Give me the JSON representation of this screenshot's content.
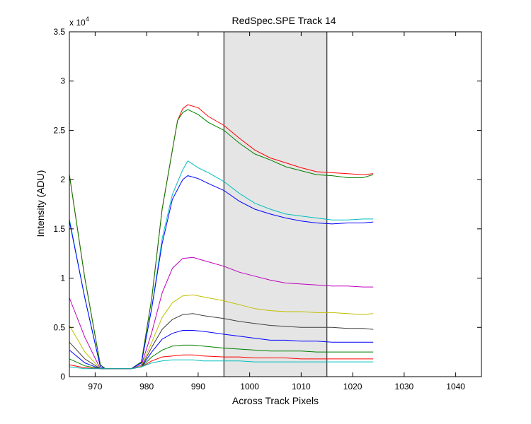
{
  "chart_data": {
    "type": "line",
    "title": "RedSpec.SPE   Track 14",
    "xlabel": "Across Track Pixels",
    "ylabel": "Intensity (ADU)",
    "y_multiplier_base": "x 10",
    "y_multiplier_exp": "4",
    "xlim": [
      965,
      1045
    ],
    "ylim": [
      0,
      3.5
    ],
    "x_ticks": [
      970,
      980,
      990,
      1000,
      1010,
      1020,
      1030,
      1040
    ],
    "x_tick_labels": [
      "970",
      "980",
      "990",
      "1000",
      "1010",
      "1020",
      "1030",
      "1040"
    ],
    "y_ticks": [
      0,
      0.5,
      1,
      1.5,
      2,
      2.5,
      3,
      3.5
    ],
    "y_tick_labels": [
      "0",
      "0.5",
      "1",
      "1.5",
      "2",
      "2.5",
      "3",
      "3.5"
    ],
    "grid": false,
    "shaded_region": {
      "x_start": 995,
      "x_end": 1015,
      "color": "#e5e5e5"
    },
    "x_end": 1024,
    "series": [
      {
        "color": "#ff0000",
        "points": [
          [
            965,
            2.05
          ],
          [
            968,
            1.0
          ],
          [
            971,
            0.12
          ],
          [
            972,
            0.08
          ],
          [
            977,
            0.08
          ],
          [
            979,
            0.15
          ],
          [
            981,
            0.8
          ],
          [
            983,
            1.7
          ],
          [
            985,
            2.3
          ],
          [
            986,
            2.6
          ],
          [
            987,
            2.72
          ],
          [
            988,
            2.76
          ],
          [
            990,
            2.73
          ],
          [
            992,
            2.64
          ],
          [
            995,
            2.55
          ],
          [
            998,
            2.42
          ],
          [
            1001,
            2.3
          ],
          [
            1004,
            2.22
          ],
          [
            1007,
            2.17
          ],
          [
            1010,
            2.12
          ],
          [
            1013,
            2.08
          ],
          [
            1016,
            2.07
          ],
          [
            1019,
            2.06
          ],
          [
            1022,
            2.05
          ],
          [
            1024,
            2.06
          ]
        ]
      },
      {
        "color": "#008000",
        "points": [
          [
            965,
            2.05
          ],
          [
            968,
            1.0
          ],
          [
            971,
            0.12
          ],
          [
            972,
            0.08
          ],
          [
            977,
            0.08
          ],
          [
            979,
            0.15
          ],
          [
            981,
            0.8
          ],
          [
            983,
            1.7
          ],
          [
            985,
            2.3
          ],
          [
            986,
            2.6
          ],
          [
            987,
            2.68
          ],
          [
            988,
            2.71
          ],
          [
            990,
            2.66
          ],
          [
            992,
            2.58
          ],
          [
            995,
            2.5
          ],
          [
            998,
            2.37
          ],
          [
            1001,
            2.26
          ],
          [
            1004,
            2.2
          ],
          [
            1007,
            2.13
          ],
          [
            1010,
            2.09
          ],
          [
            1013,
            2.05
          ],
          [
            1016,
            2.04
          ],
          [
            1019,
            2.02
          ],
          [
            1022,
            2.02
          ],
          [
            1024,
            2.05
          ]
        ]
      },
      {
        "color": "#00bfbf",
        "points": [
          [
            965,
            1.6
          ],
          [
            968,
            0.8
          ],
          [
            971,
            0.1
          ],
          [
            972,
            0.08
          ],
          [
            977,
            0.08
          ],
          [
            979,
            0.14
          ],
          [
            981,
            0.7
          ],
          [
            983,
            1.4
          ],
          [
            985,
            1.85
          ],
          [
            987,
            2.1
          ],
          [
            988,
            2.19
          ],
          [
            990,
            2.12
          ],
          [
            992,
            2.07
          ],
          [
            995,
            1.98
          ],
          [
            998,
            1.86
          ],
          [
            1001,
            1.76
          ],
          [
            1004,
            1.7
          ],
          [
            1007,
            1.65
          ],
          [
            1010,
            1.63
          ],
          [
            1013,
            1.61
          ],
          [
            1016,
            1.59
          ],
          [
            1019,
            1.59
          ],
          [
            1022,
            1.6
          ],
          [
            1024,
            1.6
          ]
        ]
      },
      {
        "color": "#0000ff",
        "points": [
          [
            965,
            1.58
          ],
          [
            968,
            0.8
          ],
          [
            971,
            0.1
          ],
          [
            972,
            0.08
          ],
          [
            977,
            0.08
          ],
          [
            979,
            0.14
          ],
          [
            981,
            0.7
          ],
          [
            983,
            1.35
          ],
          [
            985,
            1.8
          ],
          [
            987,
            2.0
          ],
          [
            988,
            2.04
          ],
          [
            990,
            2.01
          ],
          [
            992,
            1.96
          ],
          [
            995,
            1.89
          ],
          [
            998,
            1.78
          ],
          [
            1001,
            1.7
          ],
          [
            1004,
            1.65
          ],
          [
            1007,
            1.61
          ],
          [
            1010,
            1.58
          ],
          [
            1013,
            1.56
          ],
          [
            1016,
            1.55
          ],
          [
            1019,
            1.56
          ],
          [
            1022,
            1.56
          ],
          [
            1024,
            1.57
          ]
        ]
      },
      {
        "color": "#bf00bf",
        "points": [
          [
            965,
            0.8
          ],
          [
            968,
            0.4
          ],
          [
            971,
            0.08
          ],
          [
            972,
            0.08
          ],
          [
            977,
            0.08
          ],
          [
            979,
            0.12
          ],
          [
            981,
            0.45
          ],
          [
            983,
            0.85
          ],
          [
            985,
            1.1
          ],
          [
            987,
            1.2
          ],
          [
            989,
            1.21
          ],
          [
            991,
            1.18
          ],
          [
            995,
            1.12
          ],
          [
            998,
            1.06
          ],
          [
            1001,
            1.02
          ],
          [
            1004,
            0.98
          ],
          [
            1007,
            0.95
          ],
          [
            1010,
            0.94
          ],
          [
            1013,
            0.93
          ],
          [
            1016,
            0.92
          ],
          [
            1019,
            0.92
          ],
          [
            1022,
            0.91
          ],
          [
            1024,
            0.91
          ]
        ]
      },
      {
        "color": "#bfbf00",
        "points": [
          [
            965,
            0.52
          ],
          [
            968,
            0.25
          ],
          [
            971,
            0.08
          ],
          [
            977,
            0.08
          ],
          [
            979,
            0.11
          ],
          [
            981,
            0.35
          ],
          [
            983,
            0.6
          ],
          [
            985,
            0.75
          ],
          [
            987,
            0.82
          ],
          [
            989,
            0.83
          ],
          [
            991,
            0.81
          ],
          [
            995,
            0.77
          ],
          [
            998,
            0.73
          ],
          [
            1001,
            0.69
          ],
          [
            1004,
            0.67
          ],
          [
            1007,
            0.66
          ],
          [
            1010,
            0.66
          ],
          [
            1013,
            0.65
          ],
          [
            1016,
            0.65
          ],
          [
            1019,
            0.64
          ],
          [
            1022,
            0.63
          ],
          [
            1024,
            0.64
          ]
        ]
      },
      {
        "color": "#404040",
        "points": [
          [
            965,
            0.35
          ],
          [
            968,
            0.18
          ],
          [
            971,
            0.08
          ],
          [
            977,
            0.08
          ],
          [
            979,
            0.1
          ],
          [
            981,
            0.3
          ],
          [
            983,
            0.48
          ],
          [
            985,
            0.58
          ],
          [
            987,
            0.63
          ],
          [
            989,
            0.64
          ],
          [
            991,
            0.62
          ],
          [
            995,
            0.59
          ],
          [
            998,
            0.56
          ],
          [
            1001,
            0.54
          ],
          [
            1004,
            0.52
          ],
          [
            1007,
            0.51
          ],
          [
            1010,
            0.5
          ],
          [
            1013,
            0.5
          ],
          [
            1016,
            0.5
          ],
          [
            1019,
            0.49
          ],
          [
            1022,
            0.49
          ],
          [
            1024,
            0.48
          ]
        ]
      },
      {
        "color": "#0000ff",
        "points": [
          [
            965,
            0.27
          ],
          [
            968,
            0.14
          ],
          [
            971,
            0.08
          ],
          [
            977,
            0.08
          ],
          [
            979,
            0.1
          ],
          [
            981,
            0.25
          ],
          [
            983,
            0.38
          ],
          [
            985,
            0.44
          ],
          [
            987,
            0.47
          ],
          [
            989,
            0.47
          ],
          [
            991,
            0.46
          ],
          [
            995,
            0.43
          ],
          [
            998,
            0.41
          ],
          [
            1001,
            0.39
          ],
          [
            1004,
            0.37
          ],
          [
            1007,
            0.37
          ],
          [
            1010,
            0.36
          ],
          [
            1013,
            0.36
          ],
          [
            1016,
            0.35
          ],
          [
            1019,
            0.35
          ],
          [
            1022,
            0.35
          ],
          [
            1024,
            0.35
          ]
        ]
      },
      {
        "color": "#008000",
        "points": [
          [
            965,
            0.18
          ],
          [
            968,
            0.11
          ],
          [
            971,
            0.08
          ],
          [
            977,
            0.08
          ],
          [
            979,
            0.1
          ],
          [
            981,
            0.2
          ],
          [
            983,
            0.27
          ],
          [
            985,
            0.31
          ],
          [
            987,
            0.32
          ],
          [
            989,
            0.32
          ],
          [
            991,
            0.31
          ],
          [
            995,
            0.29
          ],
          [
            998,
            0.28
          ],
          [
            1001,
            0.27
          ],
          [
            1004,
            0.26
          ],
          [
            1007,
            0.26
          ],
          [
            1010,
            0.26
          ],
          [
            1013,
            0.25
          ],
          [
            1016,
            0.25
          ],
          [
            1019,
            0.25
          ],
          [
            1022,
            0.25
          ],
          [
            1024,
            0.25
          ]
        ]
      },
      {
        "color": "#ff0000",
        "points": [
          [
            965,
            0.12
          ],
          [
            968,
            0.09
          ],
          [
            971,
            0.08
          ],
          [
            977,
            0.08
          ],
          [
            979,
            0.1
          ],
          [
            981,
            0.16
          ],
          [
            983,
            0.2
          ],
          [
            985,
            0.21
          ],
          [
            987,
            0.22
          ],
          [
            989,
            0.22
          ],
          [
            991,
            0.21
          ],
          [
            995,
            0.2
          ],
          [
            998,
            0.2
          ],
          [
            1001,
            0.19
          ],
          [
            1004,
            0.19
          ],
          [
            1007,
            0.19
          ],
          [
            1010,
            0.18
          ],
          [
            1013,
            0.18
          ],
          [
            1016,
            0.18
          ],
          [
            1019,
            0.18
          ],
          [
            1022,
            0.18
          ],
          [
            1024,
            0.18
          ]
        ]
      },
      {
        "color": "#00bfbf",
        "points": [
          [
            965,
            0.1
          ],
          [
            968,
            0.08
          ],
          [
            971,
            0.08
          ],
          [
            977,
            0.08
          ],
          [
            979,
            0.1
          ],
          [
            981,
            0.14
          ],
          [
            983,
            0.16
          ],
          [
            985,
            0.17
          ],
          [
            987,
            0.17
          ],
          [
            989,
            0.17
          ],
          [
            991,
            0.16
          ],
          [
            995,
            0.16
          ],
          [
            998,
            0.16
          ],
          [
            1001,
            0.15
          ],
          [
            1004,
            0.15
          ],
          [
            1007,
            0.15
          ],
          [
            1010,
            0.15
          ],
          [
            1013,
            0.15
          ],
          [
            1016,
            0.15
          ],
          [
            1019,
            0.15
          ],
          [
            1022,
            0.15
          ],
          [
            1024,
            0.15
          ]
        ]
      }
    ]
  }
}
